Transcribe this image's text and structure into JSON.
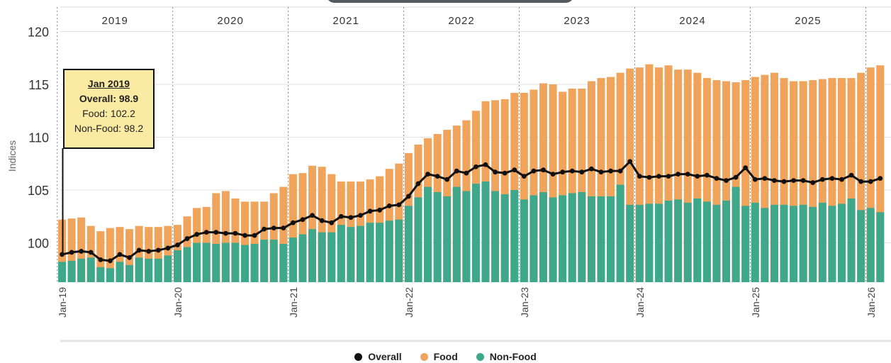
{
  "colors": {
    "overall": "#111111",
    "food": "#f0a45b",
    "nonfood": "#3fa88b",
    "tooltip_bg": "#fbeba2"
  },
  "tooltip": {
    "date": "Jan 2019",
    "overall": "Overall: 98.9",
    "food": "Food: 102.2",
    "nonfood": "Non-Food: 98.2"
  },
  "legend": [
    {
      "label": "Overall",
      "color": "#111111"
    },
    {
      "label": "Food",
      "color": "#f0a45b"
    },
    {
      "label": "Non-Food",
      "color": "#3fa88b"
    }
  ],
  "chart_data": {
    "type": "bar",
    "ylabel": "Indices",
    "ylim": [
      95,
      121
    ],
    "yticks": [
      100,
      105,
      110,
      115,
      120
    ],
    "years": [
      "2019",
      "2020",
      "2021",
      "2022",
      "2023",
      "2024",
      "2025"
    ],
    "xtick_labels": [
      "Jan-19",
      "Jan-20",
      "Jan-21",
      "Jan-22",
      "Jan-23",
      "Jan-24",
      "Jan-25",
      "Jan-26"
    ],
    "start_month": "Jan-19",
    "grid": true,
    "legend_position": "bottom-center",
    "series": [
      {
        "name": "Food",
        "values": [
          102.2,
          102.3,
          102.4,
          101.6,
          101.1,
          101.4,
          101.5,
          101.3,
          101.6,
          101.5,
          101.5,
          101.6,
          101.7,
          102.5,
          103.3,
          103.4,
          104.7,
          104.9,
          104.2,
          103.9,
          103.9,
          103.9,
          104.7,
          105.3,
          106.5,
          106.6,
          107.3,
          107.2,
          106.5,
          105.8,
          105.8,
          105.8,
          106.0,
          106.3,
          107.0,
          107.5,
          108.5,
          109.3,
          109.9,
          110.3,
          110.7,
          111.1,
          111.6,
          112.5,
          113.4,
          113.5,
          113.6,
          114.2,
          114.2,
          114.5,
          115.1,
          115.0,
          114.3,
          114.6,
          114.6,
          115.3,
          115.6,
          115.7,
          116.1,
          116.5,
          116.6,
          116.9,
          116.6,
          116.8,
          116.4,
          116.4,
          116.1,
          115.6,
          115.4,
          115.3,
          115.2,
          115.4,
          115.7,
          115.9,
          116.1,
          115.6,
          115.3,
          115.3,
          115.4,
          115.5,
          115.6,
          115.6,
          115.6,
          116.1,
          116.6,
          116.8
        ]
      },
      {
        "name": "Non-Food",
        "values": [
          98.2,
          98.3,
          98.5,
          98.6,
          97.7,
          97.6,
          98.2,
          97.9,
          98.6,
          98.5,
          98.5,
          98.8,
          99.3,
          99.6,
          100.0,
          100.0,
          99.9,
          100.0,
          100.0,
          99.8,
          99.9,
          100.3,
          100.3,
          99.9,
          100.5,
          100.8,
          101.3,
          101.0,
          101.0,
          101.7,
          101.5,
          101.6,
          101.9,
          101.9,
          102.1,
          102.2,
          103.5,
          104.3,
          105.3,
          104.8,
          104.4,
          105.3,
          104.9,
          105.6,
          105.8,
          104.9,
          104.6,
          105.0,
          104.1,
          104.5,
          104.8,
          104.3,
          104.5,
          104.7,
          104.8,
          104.4,
          104.4,
          104.4,
          105.5,
          103.6,
          103.6,
          103.7,
          103.7,
          104.0,
          104.1,
          103.8,
          104.2,
          103.9,
          103.6,
          104.0,
          105.3,
          103.5,
          103.8,
          103.3,
          103.6,
          103.6,
          103.5,
          103.6,
          103.4,
          103.8,
          103.5,
          103.7,
          104.2,
          103.1,
          103.3,
          102.9
        ]
      },
      {
        "name": "Overall",
        "values": [
          98.9,
          99.1,
          99.2,
          99.1,
          98.4,
          98.3,
          98.9,
          98.6,
          99.3,
          99.2,
          99.3,
          99.5,
          99.8,
          100.4,
          100.8,
          101.0,
          101.0,
          100.9,
          100.9,
          100.7,
          100.7,
          101.3,
          101.4,
          101.4,
          101.9,
          102.2,
          102.6,
          102.1,
          101.9,
          102.5,
          102.4,
          102.6,
          103.0,
          103.1,
          103.5,
          103.6,
          104.4,
          105.6,
          106.5,
          106.3,
          106.0,
          106.8,
          106.6,
          107.2,
          107.4,
          106.7,
          106.6,
          106.9,
          106.3,
          106.8,
          106.9,
          106.5,
          106.7,
          106.8,
          106.7,
          107.0,
          106.7,
          106.8,
          106.8,
          107.7,
          106.3,
          106.2,
          106.3,
          106.3,
          106.5,
          106.5,
          106.3,
          106.4,
          106.1,
          105.9,
          106.2,
          107.1,
          106.0,
          106.1,
          105.9,
          105.8,
          105.9,
          105.9,
          105.7,
          106.0,
          106.1,
          106.0,
          106.4,
          105.8,
          105.8,
          106.1
        ]
      }
    ]
  }
}
